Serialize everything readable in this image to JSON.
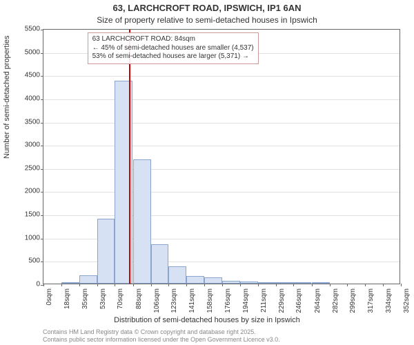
{
  "title_line1": "63, LARCHCROFT ROAD, IPSWICH, IP1 6AN",
  "title_line2": "Size of property relative to semi-detached houses in Ipswich",
  "chart": {
    "type": "histogram",
    "ylabel": "Number of semi-detached properties",
    "xlabel": "Distribution of semi-detached houses by size in Ipswich",
    "ylim": [
      0,
      5500
    ],
    "ytick_step": 500,
    "yticks": [
      0,
      500,
      1000,
      1500,
      2000,
      2500,
      3000,
      3500,
      4000,
      4500,
      5000,
      5500
    ],
    "xticks": [
      0,
      18,
      35,
      53,
      70,
      88,
      106,
      123,
      141,
      158,
      176,
      194,
      211,
      229,
      246,
      264,
      282,
      299,
      317,
      334,
      352
    ],
    "xtick_unit": "sqm",
    "bars": [
      {
        "x0": 18,
        "x1": 35,
        "value": 20
      },
      {
        "x0": 35,
        "x1": 53,
        "value": 180
      },
      {
        "x0": 53,
        "x1": 70,
        "value": 1400
      },
      {
        "x0": 70,
        "x1": 88,
        "value": 4370
      },
      {
        "x0": 88,
        "x1": 106,
        "value": 2670
      },
      {
        "x0": 106,
        "x1": 123,
        "value": 850
      },
      {
        "x0": 123,
        "x1": 141,
        "value": 370
      },
      {
        "x0": 141,
        "x1": 158,
        "value": 160
      },
      {
        "x0": 158,
        "x1": 176,
        "value": 130
      },
      {
        "x0": 176,
        "x1": 194,
        "value": 60
      },
      {
        "x0": 194,
        "x1": 211,
        "value": 40
      },
      {
        "x0": 211,
        "x1": 229,
        "value": 20
      },
      {
        "x0": 229,
        "x1": 246,
        "value": 20
      },
      {
        "x0": 246,
        "x1": 264,
        "value": 15
      },
      {
        "x0": 264,
        "x1": 282,
        "value": 10
      }
    ],
    "marker_x": 84,
    "bar_fill": "#d6e2f3",
    "bar_stroke": "#88a4cf",
    "marker_color": "#cc0000",
    "grid_color": "#e0e0e0",
    "background_color": "#ffffff",
    "axis_color": "#666666",
    "font_tick": 10,
    "font_label": 11,
    "font_title": 13
  },
  "annotation": {
    "line1": "63 LARCHCROFT ROAD: 84sqm",
    "line2": "← 45% of semi-detached houses are smaller (4,537)",
    "line3": "53% of semi-detached houses are larger (5,371) →",
    "border_color": "#c99"
  },
  "footer": {
    "line1": "Contains HM Land Registry data © Crown copyright and database right 2025.",
    "line2": "Contains public sector information licensed under the Open Government Licence v3.0."
  }
}
